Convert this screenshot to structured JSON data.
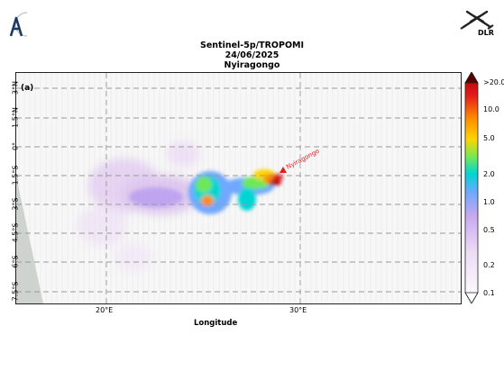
{
  "title": {
    "line1": "Sentinel-5p/TROPOMI",
    "line2": "24/06/2025",
    "line3": "Nyiragongo"
  },
  "panel_label": "(a)",
  "logos": {
    "left_logo_icon": "aeris-logo-icon",
    "right_logo_icon": "dlr-logo-icon",
    "right_logo_text": "DLR"
  },
  "map": {
    "xlabel": "Longitude",
    "lat_ticks": [
      "3°N",
      "1.5°N",
      "0°",
      "1.5°S",
      "3°S",
      "4.5°S",
      "6°S",
      "7.5°S"
    ],
    "lon_ticks": [
      "20°E",
      "30°E"
    ],
    "volcano_label": "Nyiragongo",
    "marker_color": "#e41a1c"
  },
  "colorbar": {
    "ticks": [
      ">20.0",
      "10.0",
      "5.0",
      "2.0",
      "1.0",
      "0.5",
      "0.2",
      "0.1"
    ],
    "colors": [
      "#5a0000",
      "#a50000",
      "#e41a1c",
      "#ff8c00",
      "#ffd400",
      "#6ee85a",
      "#00d4d4",
      "#6fa8ff",
      "#c8a8f0",
      "#eddcf5",
      "#ffffff"
    ]
  }
}
